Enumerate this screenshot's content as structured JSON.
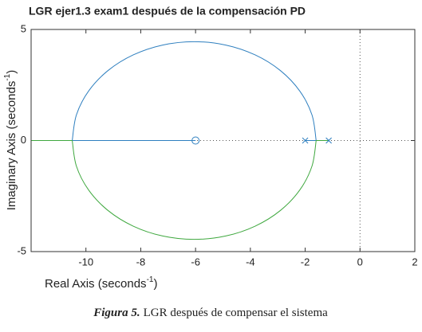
{
  "chart_data": {
    "type": "line",
    "title": "LGR ejer1.3 exam1 después de la compensación PD",
    "xlabel": {
      "text": "Real Axis  (seconds",
      "sup": "-1",
      "close": ")"
    },
    "ylabel": {
      "text": "Imaginary  Axis  (seconds",
      "sup": "-1",
      "close": ")"
    },
    "xlim": [
      -12,
      2
    ],
    "ylim": [
      -5,
      5
    ],
    "xticks": [
      -10,
      -8,
      -6,
      -4,
      -2,
      0,
      2
    ],
    "yticks": [
      -5,
      0,
      5
    ],
    "series": [
      {
        "color": "#2e7fbf",
        "smooth": false,
        "x": [
          -2,
          -1.6
        ],
        "y": [
          0,
          0
        ]
      },
      {
        "color": "#2e7fbf",
        "smooth": true,
        "x": [
          -1.6,
          -1.752,
          -2.196,
          -2.903,
          -3.825,
          -4.898,
          -6.05,
          -7.202,
          -8.275,
          -9.197,
          -9.904,
          -10.348,
          -10.5
        ],
        "y": [
          0,
          1.152,
          2.225,
          3.147,
          3.854,
          4.298,
          4.45,
          4.298,
          3.854,
          3.147,
          2.225,
          1.152,
          0
        ]
      },
      {
        "color": "#2e7fbf",
        "smooth": false,
        "x": [
          -10.5,
          -6
        ],
        "y": [
          0,
          0
        ]
      },
      {
        "color": "#3fa83f",
        "smooth": false,
        "x": [
          -1.14,
          -1.6
        ],
        "y": [
          0,
          0
        ]
      },
      {
        "color": "#3fa83f",
        "smooth": true,
        "x": [
          -1.6,
          -1.752,
          -2.196,
          -2.903,
          -3.825,
          -4.898,
          -6.05,
          -7.202,
          -8.275,
          -9.197,
          -9.904,
          -10.348,
          -10.5
        ],
        "y": [
          0,
          -1.152,
          -2.225,
          -3.147,
          -3.854,
          -4.298,
          -4.45,
          -4.298,
          -3.854,
          -3.147,
          -2.225,
          -1.152,
          0
        ]
      },
      {
        "color": "#3fa83f",
        "smooth": false,
        "x": [
          -10.5,
          -12
        ],
        "y": [
          0,
          0
        ]
      }
    ],
    "poles": {
      "color": "#2e7fbf",
      "x": [
        -2,
        -1.14
      ]
    },
    "zeros": {
      "color": "#2e7fbf",
      "x": [
        -6
      ]
    },
    "caption": {
      "label": "Figura 5.",
      "text": "LGR después de compensar el sistema"
    }
  }
}
